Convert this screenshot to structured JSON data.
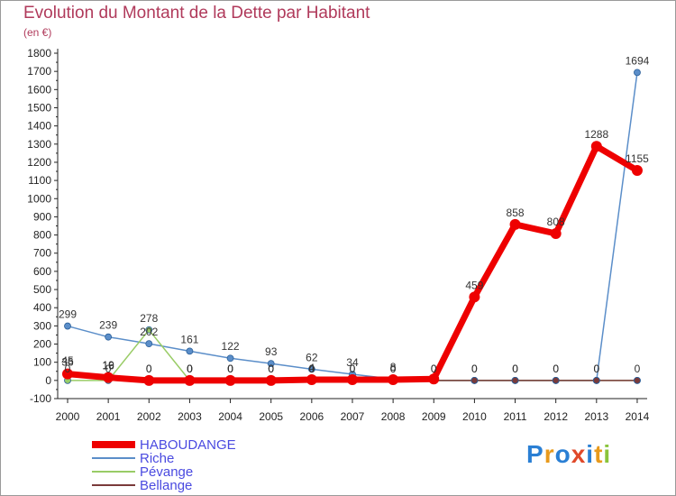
{
  "header": {
    "title": "Evolution du Montant de la Dette par Habitant",
    "subtitle": "(en €)"
  },
  "logo": {
    "text": "Proxiti"
  },
  "chart_data": {
    "type": "line",
    "x": [
      "2000",
      "2001",
      "2002",
      "2003",
      "2004",
      "2005",
      "2006",
      "2007",
      "2008",
      "2009",
      "2010",
      "2011",
      "2012",
      "2013",
      "2014"
    ],
    "ylim": [
      -100,
      1800
    ],
    "yticks": [
      -100,
      0,
      100,
      200,
      300,
      400,
      500,
      600,
      700,
      800,
      900,
      1000,
      1100,
      1200,
      1300,
      1400,
      1500,
      1600,
      1700,
      1800
    ],
    "grid": false,
    "legend_position": "bottom-left",
    "series": [
      {
        "name": "HABOUDANGE",
        "color": "#ee0000",
        "values": [
          36,
          16,
          0,
          0,
          0,
          0,
          4,
          4,
          4,
          8,
          459,
          858,
          808,
          1288,
          1155
        ],
        "labels": [
          "36",
          "16",
          "0",
          "0",
          "0",
          "0",
          "4",
          "",
          "",
          "",
          "459",
          "858",
          "808",
          "1288",
          "1155"
        ]
      },
      {
        "name": "Riche",
        "color": "#5b8ec9",
        "values": [
          299,
          239,
          202,
          161,
          122,
          93,
          62,
          34,
          8,
          0,
          0,
          0,
          0,
          0,
          1694
        ],
        "labels": [
          "299",
          "239",
          "202",
          "161",
          "122",
          "93",
          "62",
          "34",
          "8",
          "",
          "0",
          "0",
          "0",
          "0",
          "1694"
        ]
      },
      {
        "name": "Pévange",
        "color": "#99cc66",
        "values": [
          0,
          0,
          278,
          0,
          0,
          0,
          0,
          0,
          0,
          0,
          0,
          0,
          0,
          0,
          0
        ],
        "labels": [
          "0",
          "0",
          "278",
          "0",
          "0",
          "0",
          "0",
          "0",
          "0",
          "0",
          "",
          "",
          "",
          "",
          ""
        ]
      },
      {
        "name": "Bellange",
        "color": "#7a3a3a",
        "values": [
          45,
          19,
          0,
          0,
          0,
          0,
          0,
          0,
          0,
          0,
          0,
          0,
          0,
          0,
          0
        ],
        "labels": [
          "45",
          "19",
          "0",
          "0",
          "0",
          "0",
          "0",
          "0",
          "0",
          "0",
          "0",
          "0",
          "0",
          "0",
          "0"
        ]
      }
    ]
  }
}
